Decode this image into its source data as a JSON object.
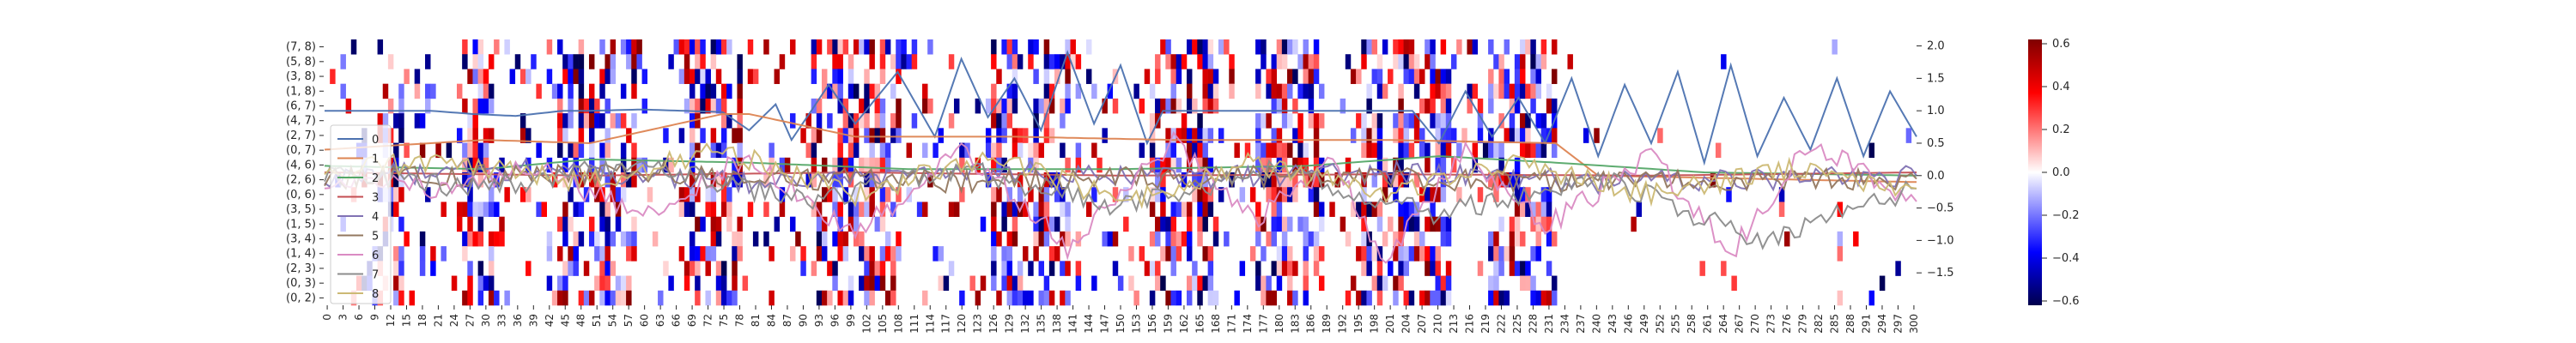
{
  "chart_data": {
    "type": "heatmap",
    "heatmap": {
      "y_labels": [
        "(7, 8)",
        "(5, 8)",
        "(3, 8)",
        "(1, 8)",
        "(6, 7)",
        "(4, 7)",
        "(2, 7)",
        "(0, 7)",
        "(4, 6)",
        "(2, 6)",
        "(0, 6)",
        "(3, 5)",
        "(1, 5)",
        "(3, 4)",
        "(1, 4)",
        "(2, 3)",
        "(0, 3)",
        "(0, 2)"
      ],
      "x_tick_labels": [
        "0",
        "3",
        "6",
        "9",
        "12",
        "15",
        "18",
        "21",
        "24",
        "27",
        "30",
        "33",
        "36",
        "39",
        "42",
        "45",
        "48",
        "51",
        "54",
        "57",
        "60",
        "63",
        "66",
        "69",
        "72",
        "75",
        "78",
        "81",
        "84",
        "87",
        "90",
        "93",
        "96",
        "99",
        "102",
        "105",
        "108",
        "111",
        "114",
        "117",
        "120",
        "123",
        "126",
        "129",
        "132",
        "135",
        "138",
        "141",
        "144",
        "147",
        "150",
        "153",
        "156",
        "159",
        "162",
        "165",
        "168",
        "171",
        "174",
        "177",
        "180",
        "183",
        "186",
        "189",
        "192",
        "195",
        "198",
        "201",
        "204",
        "207",
        "210",
        "213",
        "216",
        "219",
        "222",
        "225",
        "228",
        "231",
        "234",
        "237",
        "240",
        "243",
        "246",
        "249",
        "252",
        "255",
        "258",
        "261",
        "264",
        "267",
        "270",
        "273",
        "276",
        "279",
        "282",
        "285",
        "288",
        "291",
        "294",
        "297",
        "300"
      ],
      "n_columns": 301,
      "value_range": [
        -0.62,
        0.62
      ],
      "colormap": "seismic",
      "colorbar_ticks": [
        "0.6",
        "0.4",
        "0.2",
        "0.0",
        "−0.2",
        "−0.4",
        "−0.6"
      ],
      "note": "sparse cell values; columns with dense activity include 10-14, 26-32, 44-58, 68-78, 92-108, 126-140, 156-168, 176-188, 196-212, 220-232"
    },
    "lines": {
      "x_range": [
        0,
        300
      ],
      "y_range": [
        -2.0,
        2.1
      ],
      "right_axis_ticks": [
        "2.0",
        "1.5",
        "1.0",
        "0.5",
        "0.0",
        "−0.5",
        "−1.0",
        "−1.5"
      ],
      "legend": [
        "0",
        "1",
        "2",
        "3",
        "4",
        "5",
        "6",
        "7",
        "8"
      ],
      "legend_position": "left",
      "series_colors": [
        "#4c72b0",
        "#dd8452",
        "#55a868",
        "#c44e52",
        "#8172b3",
        "#937860",
        "#da8bc3",
        "#8c8c8c",
        "#ccb974"
      ],
      "series": [
        {
          "name": "0",
          "points": [
            [
              0,
              1.0
            ],
            [
              20,
              1.0
            ],
            [
              28,
              0.95
            ],
            [
              36,
              0.92
            ],
            [
              45,
              1.0
            ],
            [
              50,
              1.0
            ],
            [
              60,
              1.02
            ],
            [
              75,
              0.98
            ],
            [
              80,
              0.7
            ],
            [
              85,
              1.1
            ],
            [
              88,
              0.55
            ],
            [
              95,
              1.4
            ],
            [
              100,
              0.8
            ],
            [
              108,
              1.6
            ],
            [
              115,
              0.6
            ],
            [
              120,
              1.8
            ],
            [
              125,
              0.9
            ],
            [
              130,
              1.5
            ],
            [
              135,
              0.7
            ],
            [
              140,
              1.9
            ],
            [
              145,
              0.8
            ],
            [
              150,
              1.7
            ],
            [
              155,
              0.5
            ],
            [
              158,
              1.0
            ],
            [
              165,
              1.0
            ],
            [
              175,
              1.0
            ],
            [
              185,
              1.0
            ],
            [
              195,
              1.0
            ],
            [
              205,
              1.0
            ],
            [
              210,
              0.5
            ],
            [
              215,
              1.3
            ],
            [
              220,
              0.6
            ],
            [
              225,
              1.2
            ],
            [
              230,
              0.5
            ],
            [
              235,
              1.5
            ],
            [
              240,
              0.3
            ],
            [
              245,
              1.4
            ],
            [
              250,
              0.5
            ],
            [
              255,
              1.6
            ],
            [
              260,
              0.2
            ],
            [
              265,
              1.7
            ],
            [
              270,
              0.3
            ],
            [
              275,
              1.2
            ],
            [
              280,
              0.4
            ],
            [
              285,
              1.5
            ],
            [
              290,
              0.3
            ],
            [
              295,
              1.3
            ],
            [
              300,
              0.6
            ]
          ]
        },
        {
          "name": "1",
          "points": [
            [
              0,
              0.4
            ],
            [
              30,
              0.55
            ],
            [
              50,
              0.5
            ],
            [
              75,
              0.95
            ],
            [
              80,
              0.95
            ],
            [
              100,
              0.6
            ],
            [
              130,
              0.6
            ],
            [
              160,
              0.55
            ],
            [
              200,
              0.55
            ],
            [
              232,
              0.5
            ],
            [
              240,
              0.0
            ],
            [
              300,
              -0.1
            ]
          ]
        },
        {
          "name": "2",
          "points": [
            [
              0,
              0.15
            ],
            [
              30,
              0.1
            ],
            [
              50,
              0.25
            ],
            [
              80,
              0.2
            ],
            [
              110,
              0.1
            ],
            [
              150,
              0.1
            ],
            [
              185,
              0.15
            ],
            [
              210,
              0.3
            ],
            [
              232,
              0.2
            ],
            [
              260,
              0.05
            ],
            [
              300,
              0.0
            ]
          ]
        },
        {
          "name": "3",
          "points": [
            [
              0,
              0.05
            ],
            [
              50,
              0.0
            ],
            [
              100,
              0.05
            ],
            [
              150,
              0.0
            ],
            [
              200,
              0.02
            ],
            [
              250,
              0.0
            ],
            [
              300,
              0.05
            ]
          ]
        },
        {
          "name": "4",
          "points": [
            [
              0,
              0.0
            ],
            [
              40,
              0.1
            ],
            [
              80,
              -0.1
            ],
            [
              120,
              0.1
            ],
            [
              160,
              -0.05
            ],
            [
              200,
              0.05
            ],
            [
              240,
              -0.1
            ],
            [
              300,
              0.0
            ]
          ]
        },
        {
          "name": "5",
          "points": [
            [
              0,
              -0.05
            ],
            [
              60,
              0.05
            ],
            [
              110,
              -0.1
            ],
            [
              170,
              0.0
            ],
            [
              230,
              -0.1
            ],
            [
              300,
              -0.05
            ]
          ]
        },
        {
          "name": "6",
          "points": [
            [
              0,
              -0.1
            ],
            [
              20,
              -0.2
            ],
            [
              40,
              0.1
            ],
            [
              60,
              -0.6
            ],
            [
              80,
              0.3
            ],
            [
              100,
              -0.9
            ],
            [
              120,
              0.4
            ],
            [
              140,
              -1.1
            ],
            [
              160,
              0.5
            ],
            [
              175,
              -0.7
            ],
            [
              190,
              0.2
            ],
            [
              200,
              -1.3
            ],
            [
              215,
              0.4
            ],
            [
              230,
              -0.8
            ],
            [
              250,
              0.3
            ],
            [
              265,
              -1.2
            ],
            [
              280,
              0.5
            ],
            [
              300,
              -0.4
            ]
          ]
        },
        {
          "name": "7",
          "points": [
            [
              0,
              0.0
            ],
            [
              30,
              -0.2
            ],
            [
              60,
              0.2
            ],
            [
              90,
              -0.4
            ],
            [
              120,
              0.1
            ],
            [
              150,
              -0.5
            ],
            [
              180,
              0.1
            ],
            [
              210,
              -0.6
            ],
            [
              240,
              0.0
            ],
            [
              270,
              -1.0
            ],
            [
              300,
              -0.2
            ]
          ]
        },
        {
          "name": "8",
          "points": [
            [
              0,
              0.1
            ],
            [
              25,
              0.2
            ],
            [
              50,
              -0.1
            ],
            [
              75,
              0.4
            ],
            [
              100,
              -0.3
            ],
            [
              125,
              0.3
            ],
            [
              150,
              -0.4
            ],
            [
              175,
              0.2
            ],
            [
              200,
              -0.3
            ],
            [
              225,
              0.2
            ],
            [
              250,
              -0.3
            ],
            [
              275,
              0.1
            ],
            [
              300,
              -0.2
            ]
          ]
        }
      ]
    }
  }
}
